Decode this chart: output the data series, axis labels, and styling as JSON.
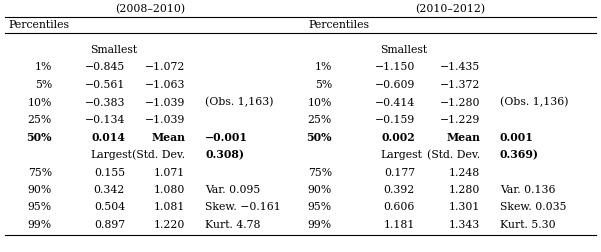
{
  "title_left": "(2008–2010)",
  "title_right": "(2010–2012)",
  "header_left": "Percentiles",
  "header_right": "Percentiles",
  "rows": [
    {
      "pct": "1%",
      "val1": "−0.845",
      "val2": "−1.072",
      "extra": "",
      "pct2": "1%",
      "val3": "−1.150",
      "val4": "−1.435",
      "extra2": "",
      "bold": false
    },
    {
      "pct": "5%",
      "val1": "−0.561",
      "val2": "−1.063",
      "extra": "",
      "pct2": "5%",
      "val3": "−0.609",
      "val4": "−1.372",
      "extra2": "",
      "bold": false
    },
    {
      "pct": "10%",
      "val1": "−0.383",
      "val2": "−1.039",
      "extra": "(Obs. 1,163)",
      "pct2": "10%",
      "val3": "−0.414",
      "val4": "−1.280",
      "extra2": "(Obs. 1,136)",
      "bold": false
    },
    {
      "pct": "25%",
      "val1": "−0.134",
      "val2": "−1.039",
      "extra": "",
      "pct2": "25%",
      "val3": "−0.159",
      "val4": "−1.229",
      "extra2": "",
      "bold": false
    },
    {
      "pct": "50%",
      "val1": "0.014",
      "val2": "Mean",
      "extra": "−0.001",
      "pct2": "50%",
      "val3": "0.002",
      "val4": "Mean",
      "extra2": "0.001",
      "bold": true
    },
    {
      "pct": "",
      "val1": "Largest",
      "val2": "(Std. Dev.",
      "extra": "0.308)",
      "pct2": "",
      "val3": "Largest",
      "val4": "(Std. Dev.",
      "extra2": "0.369)",
      "bold": false,
      "stddev": true
    },
    {
      "pct": "75%",
      "val1": "0.155",
      "val2": "1.071",
      "extra": "",
      "pct2": "75%",
      "val3": "0.177",
      "val4": "1.248",
      "extra2": "",
      "bold": false
    },
    {
      "pct": "90%",
      "val1": "0.342",
      "val2": "1.080",
      "extra": "Var. 0.095",
      "pct2": "90%",
      "val3": "0.392",
      "val4": "1.280",
      "extra2": "Var. 0.136",
      "bold": false
    },
    {
      "pct": "95%",
      "val1": "0.504",
      "val2": "1.081",
      "extra": "Skew. −0.161",
      "pct2": "95%",
      "val3": "0.606",
      "val4": "1.301",
      "extra2": "Skew. 0.035",
      "bold": false
    },
    {
      "pct": "99%",
      "val1": "0.897",
      "val2": "1.220",
      "extra": "Kurt. 4.78",
      "pct2": "99%",
      "val3": "1.181",
      "val4": "1.343",
      "extra2": "Kurt. 5.30",
      "bold": false
    }
  ],
  "bg_color": "#ffffff",
  "text_color": "#000000",
  "font_size": 7.8
}
